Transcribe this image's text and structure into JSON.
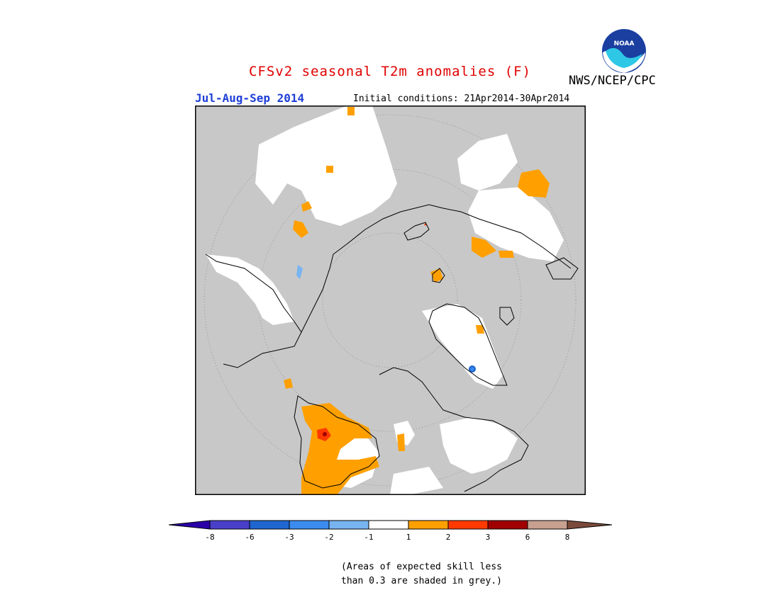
{
  "title": "CFSv2 seasonal T2m anomalies (F)",
  "season": "Jul-Aug-Sep 2014",
  "initial_conditions": "Initial conditions: 21Apr2014-30Apr2014",
  "agency": "NWS/NCEP/CPC",
  "logo_text": "NOAA",
  "colorbar": {
    "labels": [
      "-8",
      "-6",
      "-3",
      "-2",
      "-1",
      "1",
      "2",
      "3",
      "6",
      "8"
    ],
    "colors": [
      "#2a00a8",
      "#4a3fc8",
      "#1f66d0",
      "#3c8cf0",
      "#78b4f0",
      "#ffffff",
      "#ffa000",
      "#ff3a00",
      "#a00000",
      "#c8a090",
      "#7a4a3a"
    ]
  },
  "colors": {
    "skill_mask": "#c8c8c8",
    "anomaly_1_2": "#ffa000",
    "anomaly_2_3": "#ff3a00",
    "anomaly_3_6": "#a00000",
    "anomaly_neg": "#3c8cf0",
    "near_zero": "#ffffff"
  },
  "note_line1": "(Areas of expected skill less",
  "note_line2": "than 0.3 are shaded in grey.)"
}
